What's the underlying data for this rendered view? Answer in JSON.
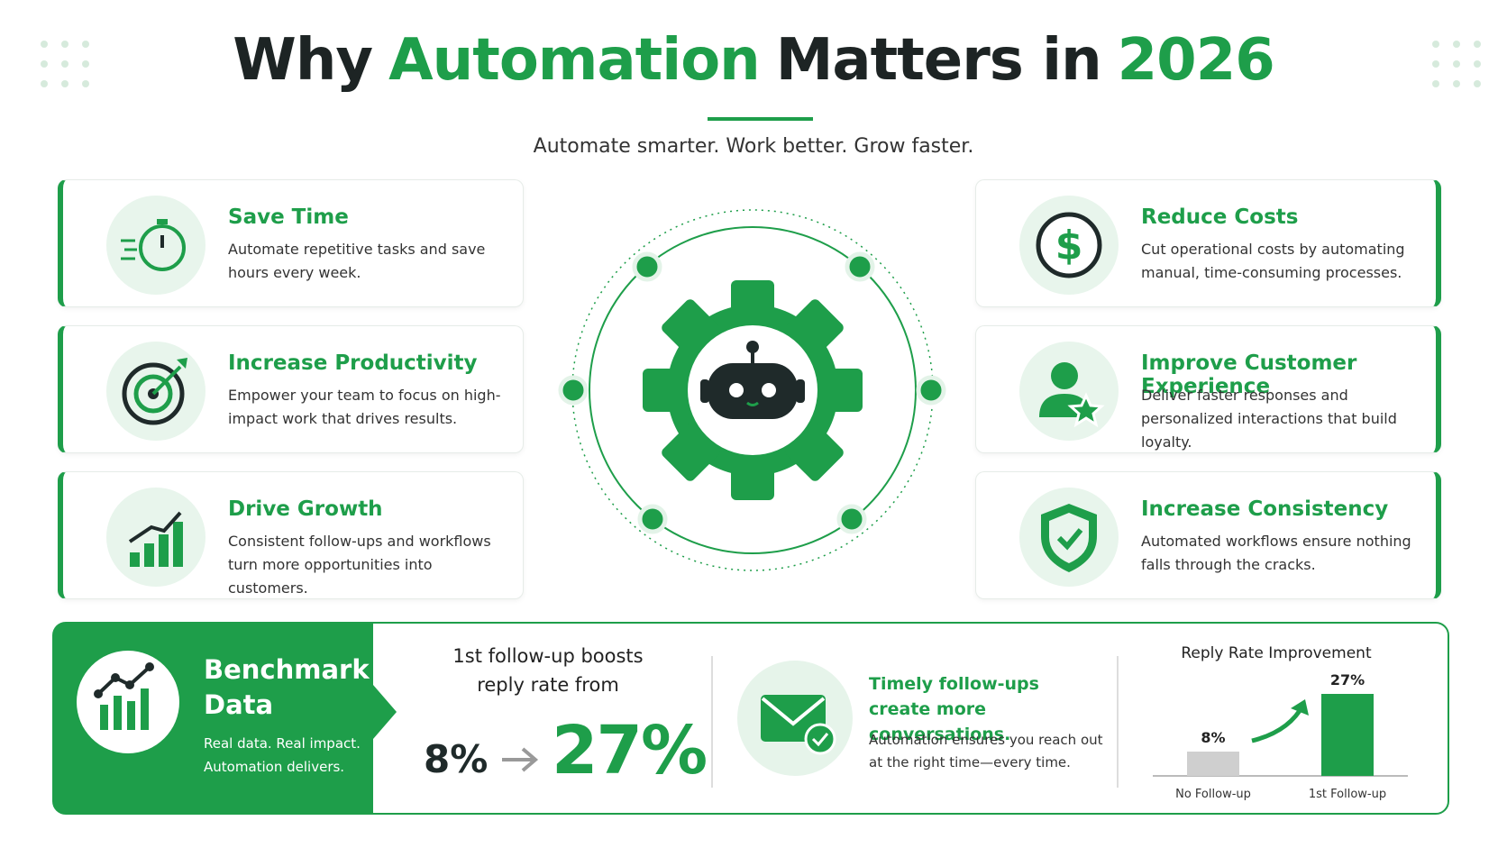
{
  "header": {
    "title_parts": [
      "Why",
      "Automation",
      "Matters in",
      "2026"
    ],
    "subtitle": "Automate smarter. Work better. Grow faster."
  },
  "cards": [
    {
      "title": "Save Time",
      "text": "Automate repetitive tasks and save hours every week."
    },
    {
      "title": "Increase Productivity",
      "text": "Empower your team to focus on high-impact work that drives results."
    },
    {
      "title": "Drive Growth",
      "text": "Consistent follow-ups and workflows turn more opportunities into customers."
    },
    {
      "title": "Reduce Costs",
      "text": "Cut operational costs by automating manual, time-consuming processes."
    },
    {
      "title": "Improve Customer Experience",
      "text": "Deliver faster responses and personalized interactions that build loyalty."
    },
    {
      "title": "Increase Consistency",
      "text": "Automated workflows ensure nothing falls through the cracks."
    }
  ],
  "benchmark": {
    "title": "Benchmark Data",
    "text": "Real data. Real impact. Automation delivers.",
    "caption": "1st follow-up boosts reply rate from",
    "from": "8%",
    "to": "27%",
    "timely_title": "Timely follow-ups create more conversations.",
    "timely_text": "Automation ensures you reach out at the right time—every time."
  },
  "chart_data": {
    "type": "bar",
    "title": "Reply Rate Improvement",
    "categories": [
      "No Follow-up",
      "1st Follow-up"
    ],
    "values": [
      8,
      27
    ],
    "value_labels": [
      "8%",
      "27%"
    ],
    "colors": [
      "#cfcfcf",
      "#1e9e4a"
    ]
  }
}
